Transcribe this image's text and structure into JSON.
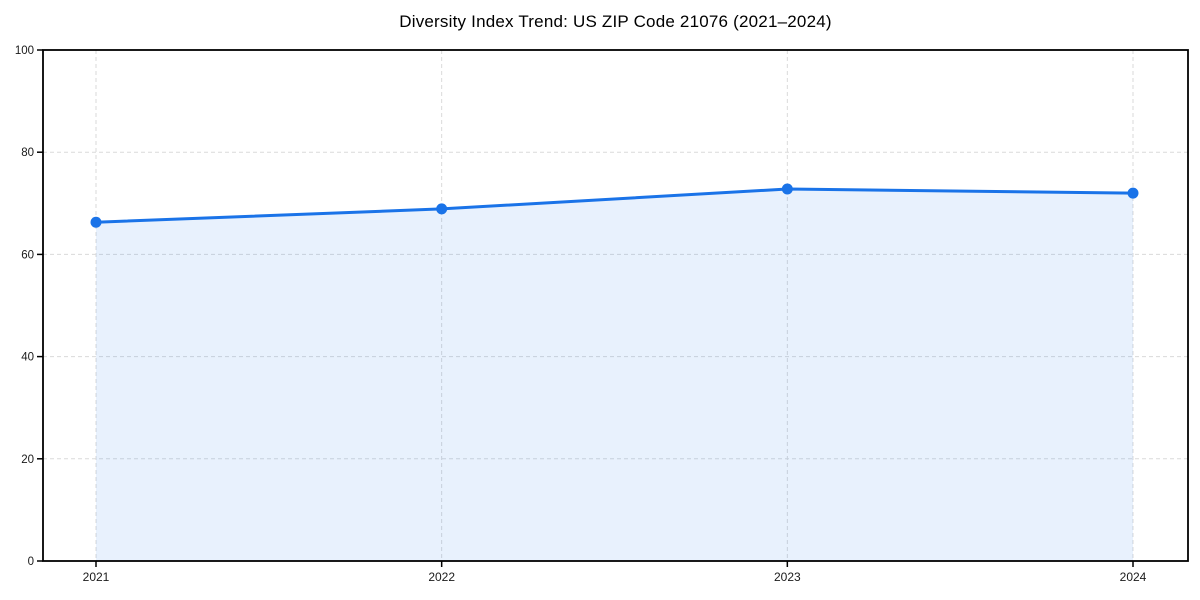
{
  "chart_data": {
    "type": "area",
    "title": "Diversity Index Trend: US ZIP Code 21076 (2021–2024)",
    "series_name": "Diversity Index",
    "x": [
      2021,
      2022,
      2023,
      2024
    ],
    "values": [
      66.3,
      68.9,
      72.8,
      72.0
    ],
    "xticks": [
      "2021",
      "2022",
      "2023",
      "2024"
    ],
    "yticks": [
      0,
      20,
      40,
      60,
      80,
      100
    ],
    "xlabel": "",
    "ylabel": "",
    "ylim": [
      0,
      100
    ],
    "grid": true,
    "grid_style": "dashed",
    "legend": false,
    "colors": {
      "line": "#1a73e8",
      "marker": "#1a73e8",
      "fill": "rgba(26,115,232,0.10)",
      "gridline": "#dadada",
      "spine": "#000000",
      "tick_text": "#1a1a1a",
      "background": "#ffffff"
    }
  }
}
